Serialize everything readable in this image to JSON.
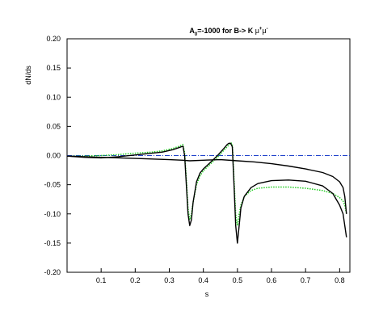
{
  "chart_data": {
    "type": "line",
    "title": {
      "prefix": "A",
      "prefix_sub": "0",
      "middle": "=-1000 for  B-> K ",
      "mu1": "μ",
      "mu1_sup": "+",
      "mu2": "μ",
      "mu2_sup": "-"
    },
    "xlabel": "s",
    "ylabel": "dN/ds",
    "xlim": [
      0.0,
      0.83
    ],
    "ylim": [
      -0.2,
      0.2
    ],
    "xticks": [
      {
        "value": 0.1,
        "label": "0.1"
      },
      {
        "value": 0.2,
        "label": "0.2"
      },
      {
        "value": 0.3,
        "label": "0.3"
      },
      {
        "value": 0.4,
        "label": "0.4"
      },
      {
        "value": 0.5,
        "label": "0.5"
      },
      {
        "value": 0.6,
        "label": "0.6"
      },
      {
        "value": 0.7,
        "label": "0.7"
      },
      {
        "value": 0.8,
        "label": "0.8"
      }
    ],
    "yticks": [
      {
        "value": 0.2,
        "label": "0.20"
      },
      {
        "value": 0.15,
        "label": "0.15"
      },
      {
        "value": 0.1,
        "label": "0.10"
      },
      {
        "value": 0.05,
        "label": "0.05"
      },
      {
        "value": 0.0,
        "label": "0.00"
      },
      {
        "value": -0.05,
        "label": "-0.05"
      },
      {
        "value": -0.1,
        "label": "-0.10"
      },
      {
        "value": -0.15,
        "label": "-0.15"
      },
      {
        "value": -0.2,
        "label": "-0.20"
      }
    ],
    "series": [
      {
        "color": "#2244cc",
        "style": "dashdot",
        "x": [
          0.0,
          0.83
        ],
        "y": [
          0.0,
          0.0
        ]
      },
      {
        "color": "#22cc22",
        "style": "dotted",
        "x": [
          0.0,
          0.05,
          0.1,
          0.15,
          0.2,
          0.25,
          0.28,
          0.31,
          0.33,
          0.34,
          0.345,
          0.35,
          0.355,
          0.36,
          0.365,
          0.37,
          0.38,
          0.39,
          0.4,
          0.42,
          0.44,
          0.46,
          0.47,
          0.48,
          0.485,
          0.49,
          0.495,
          0.5,
          0.505,
          0.51,
          0.52,
          0.54,
          0.56,
          0.6,
          0.65,
          0.7,
          0.75,
          0.78,
          0.8,
          0.81,
          0.815,
          0.82
        ],
        "y": [
          -0.001,
          -0.001,
          0.0,
          0.0015,
          0.004,
          0.006,
          0.008,
          0.012,
          0.016,
          0.019,
          0.005,
          -0.04,
          -0.09,
          -0.11,
          -0.1,
          -0.08,
          -0.05,
          -0.035,
          -0.026,
          -0.015,
          -0.004,
          0.009,
          0.015,
          0.022,
          0.02,
          -0.04,
          -0.1,
          -0.12,
          -0.1,
          -0.085,
          -0.07,
          -0.06,
          -0.056,
          -0.054,
          -0.054,
          -0.056,
          -0.06,
          -0.065,
          -0.072,
          -0.078,
          -0.085,
          -0.1
        ]
      },
      {
        "color": "#000000",
        "style": "solid",
        "x": [
          0.0,
          0.05,
          0.1,
          0.15,
          0.2,
          0.25,
          0.28,
          0.31,
          0.33,
          0.34,
          0.345,
          0.35,
          0.355,
          0.36,
          0.365,
          0.37,
          0.38,
          0.39,
          0.4,
          0.42,
          0.44,
          0.46,
          0.47,
          0.475,
          0.48,
          0.485,
          0.49,
          0.495,
          0.5,
          0.505,
          0.51,
          0.52,
          0.54,
          0.56,
          0.6,
          0.65,
          0.7,
          0.75,
          0.78,
          0.8,
          0.81,
          0.815,
          0.82
        ],
        "y": [
          -0.001,
          -0.003,
          -0.004,
          -0.002,
          0.001,
          0.004,
          0.006,
          0.01,
          0.014,
          0.016,
          0.0,
          -0.05,
          -0.1,
          -0.12,
          -0.11,
          -0.08,
          -0.045,
          -0.03,
          -0.023,
          -0.012,
          -0.001,
          0.012,
          0.019,
          0.021,
          0.021,
          0.015,
          -0.05,
          -0.12,
          -0.15,
          -0.12,
          -0.09,
          -0.07,
          -0.055,
          -0.048,
          -0.043,
          -0.042,
          -0.044,
          -0.052,
          -0.065,
          -0.085,
          -0.1,
          -0.12,
          -0.14
        ]
      },
      {
        "color": "#000000",
        "style": "solid",
        "x": [
          0.0,
          0.1,
          0.2,
          0.3,
          0.34,
          0.36,
          0.4,
          0.45,
          0.5,
          0.55,
          0.6,
          0.65,
          0.7,
          0.75,
          0.78,
          0.8,
          0.81,
          0.815,
          0.82
        ],
        "y": [
          -0.001,
          -0.003,
          -0.005,
          -0.007,
          -0.008,
          -0.009,
          -0.008,
          -0.007,
          -0.009,
          -0.011,
          -0.014,
          -0.018,
          -0.023,
          -0.029,
          -0.036,
          -0.045,
          -0.055,
          -0.07,
          -0.1
        ]
      }
    ]
  }
}
